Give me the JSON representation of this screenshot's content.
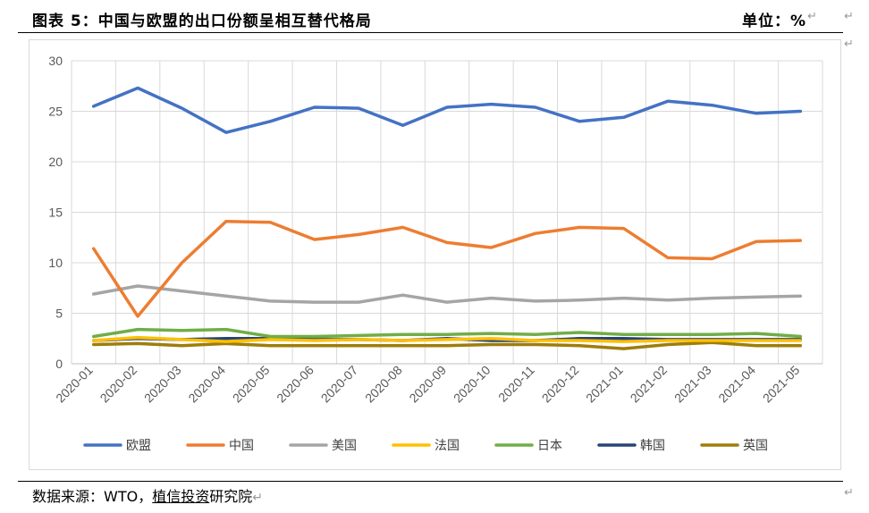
{
  "header": {
    "title": "图表 5：中国与欧盟的出口份额呈相互替代格局",
    "unit": "单位：%"
  },
  "source": {
    "prefix": "数据来源：WTO，",
    "company": "植信投资",
    "suffix": "研究院"
  },
  "chart_data": {
    "type": "line",
    "title": "",
    "xlabel": "",
    "ylabel": "",
    "ylim": [
      0,
      30
    ],
    "yticks": [
      0,
      5,
      10,
      15,
      20,
      25,
      30
    ],
    "grid": true,
    "legend_position": "bottom",
    "categories": [
      "2020-01",
      "2020-02",
      "2020-03",
      "2020-04",
      "2020-05",
      "2020-06",
      "2020-07",
      "2020-08",
      "2020-09",
      "2020-10",
      "2020-11",
      "2020-12",
      "2021-01",
      "2021-02",
      "2021-03",
      "2021-04",
      "2021-05"
    ],
    "series": [
      {
        "name": "欧盟",
        "color": "#4472C4",
        "values": [
          25.5,
          27.3,
          25.3,
          22.9,
          24.0,
          25.4,
          25.3,
          23.6,
          25.4,
          25.7,
          25.4,
          24.0,
          24.4,
          26.0,
          25.6,
          24.8,
          25.0
        ]
      },
      {
        "name": "中国",
        "color": "#ED7D31",
        "values": [
          11.4,
          4.7,
          10.0,
          14.1,
          14.0,
          12.3,
          12.8,
          13.5,
          12.0,
          11.5,
          12.9,
          13.5,
          13.4,
          10.5,
          10.4,
          12.1,
          12.2
        ]
      },
      {
        "name": "美国",
        "color": "#A5A5A5",
        "values": [
          6.9,
          7.7,
          7.2,
          6.7,
          6.2,
          6.1,
          6.1,
          6.8,
          6.1,
          6.5,
          6.2,
          6.3,
          6.5,
          6.3,
          6.5,
          6.6,
          6.7
        ]
      },
      {
        "name": "法国",
        "color": "#FFC000",
        "values": [
          2.3,
          2.6,
          2.4,
          2.2,
          2.4,
          2.3,
          2.4,
          2.3,
          2.4,
          2.5,
          2.3,
          2.3,
          2.2,
          2.3,
          2.3,
          2.3,
          2.3
        ]
      },
      {
        "name": "日本",
        "color": "#70AD47",
        "values": [
          2.7,
          3.4,
          3.3,
          3.4,
          2.7,
          2.7,
          2.8,
          2.9,
          2.9,
          3.0,
          2.9,
          3.1,
          2.9,
          2.9,
          2.9,
          3.0,
          2.7
        ]
      },
      {
        "name": "韩国",
        "color": "#264478",
        "values": [
          2.3,
          2.5,
          2.4,
          2.5,
          2.5,
          2.4,
          2.4,
          2.3,
          2.5,
          2.3,
          2.3,
          2.5,
          2.5,
          2.4,
          2.4,
          2.4,
          2.4
        ]
      },
      {
        "name": "英国",
        "color": "#9E7D0A",
        "values": [
          1.9,
          2.0,
          1.8,
          2.0,
          1.8,
          1.8,
          1.8,
          1.8,
          1.8,
          1.9,
          1.9,
          1.8,
          1.5,
          1.9,
          2.1,
          1.8,
          1.8
        ]
      }
    ]
  }
}
